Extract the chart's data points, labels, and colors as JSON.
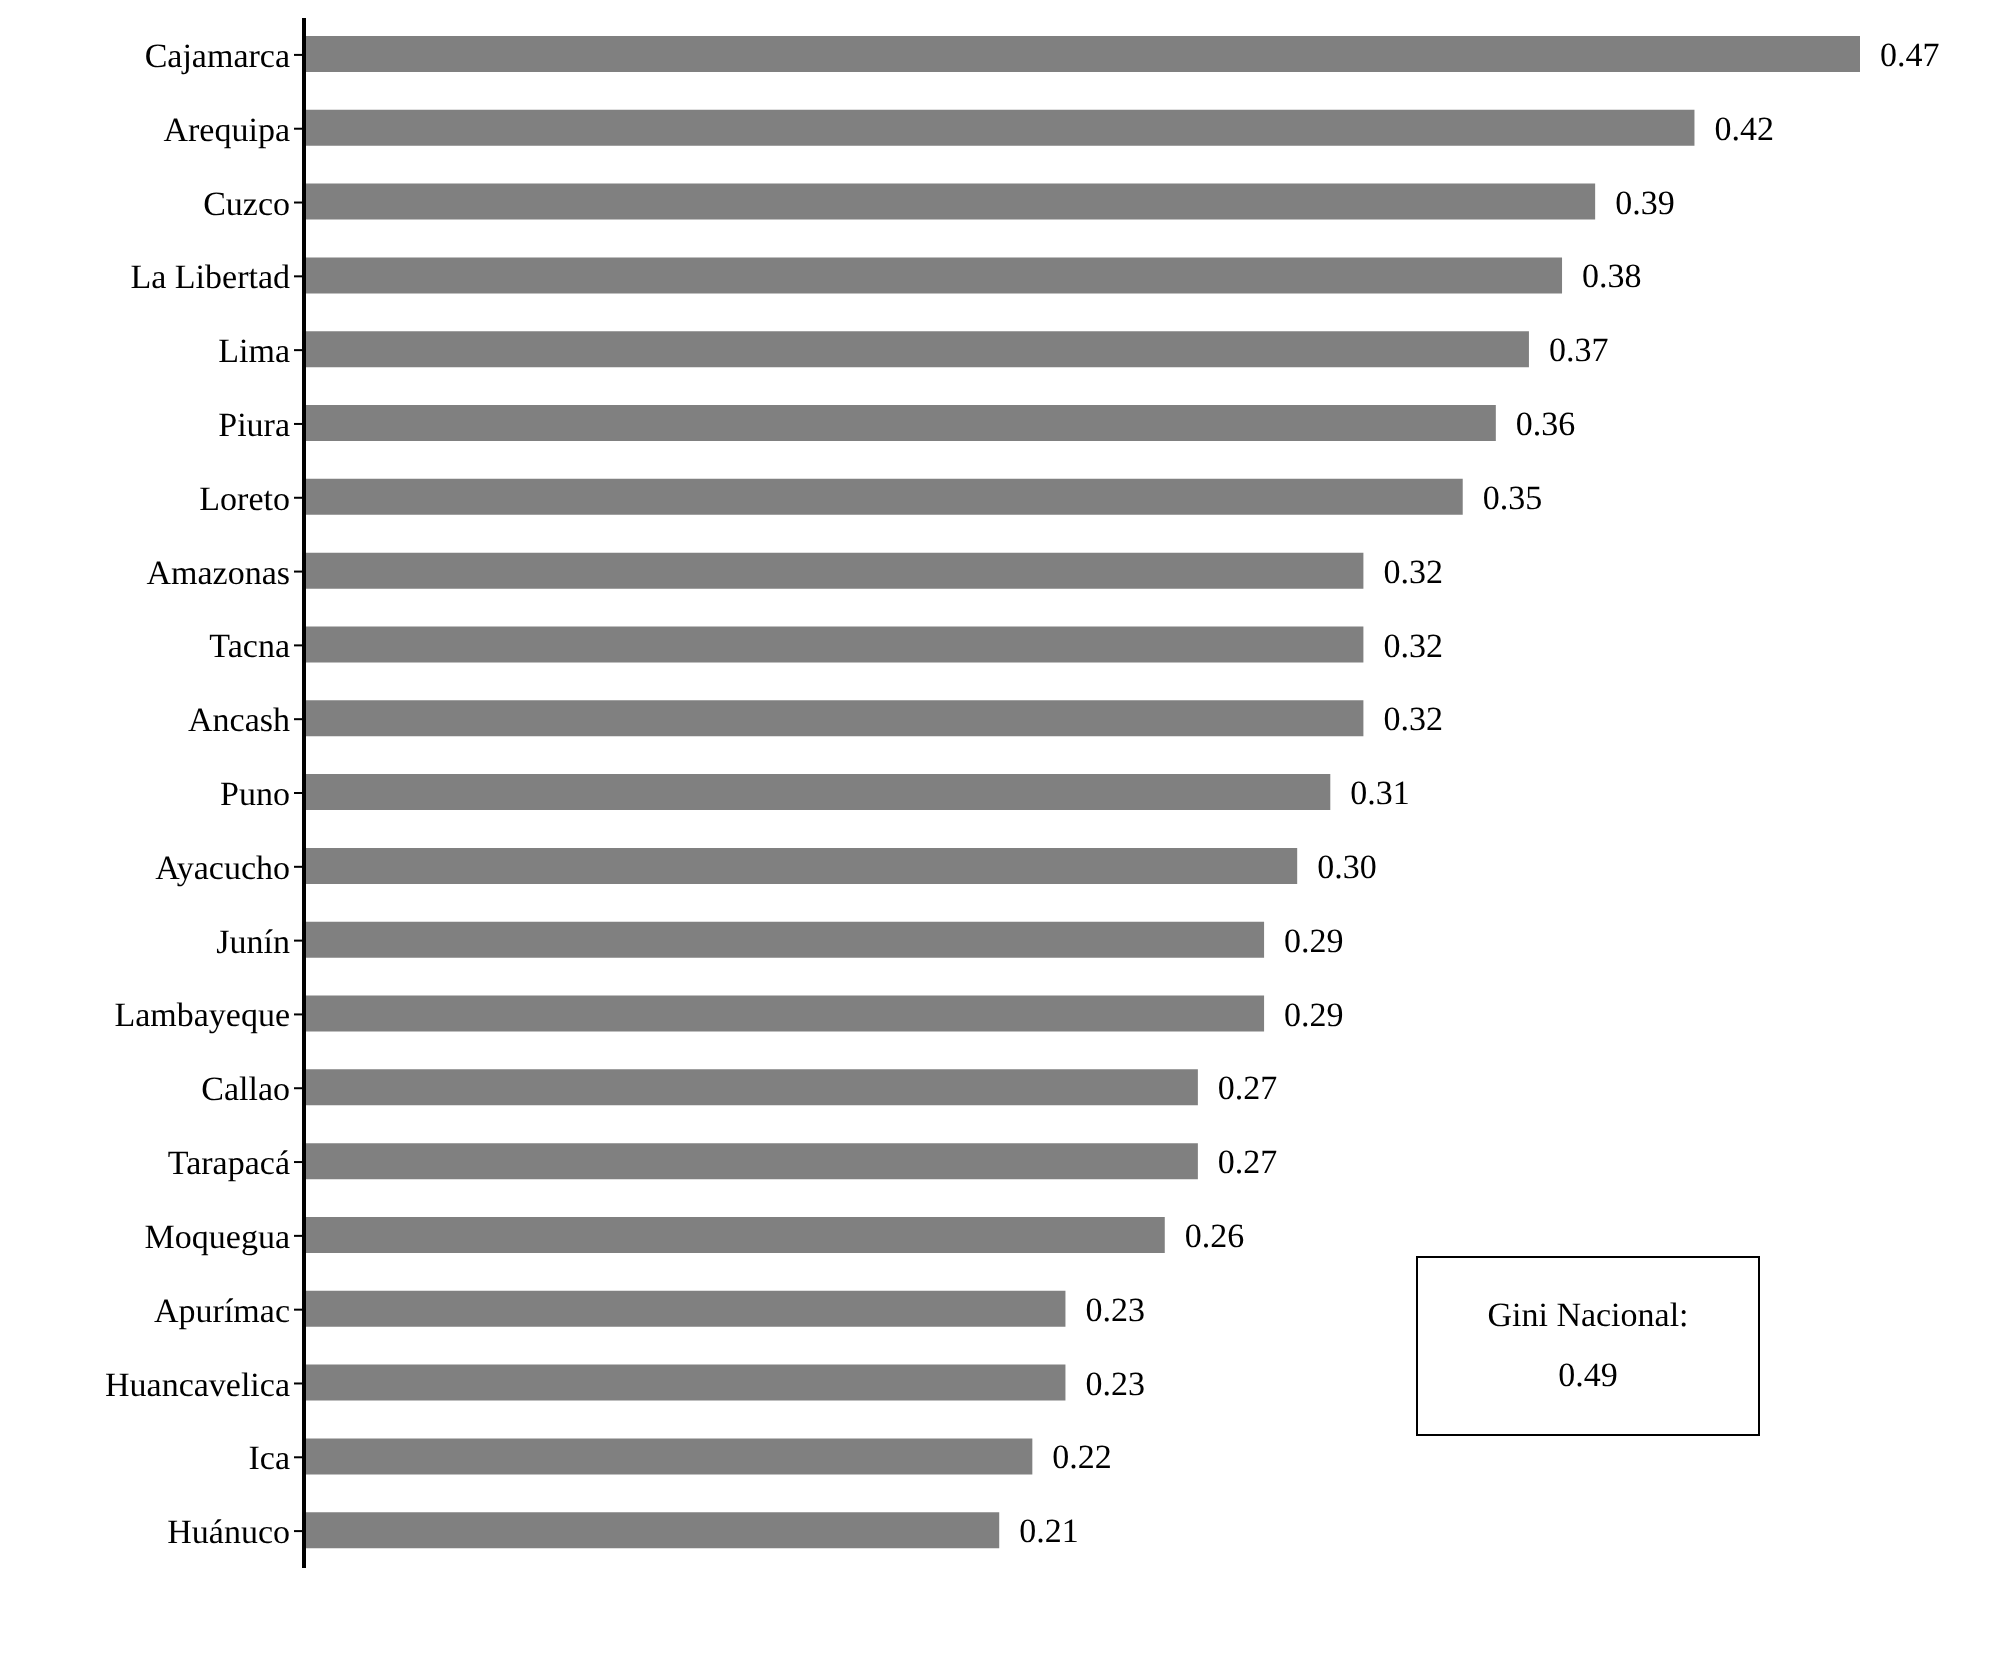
{
  "chart_data": {
    "type": "bar",
    "orientation": "horizontal",
    "categories": [
      "Cajamarca",
      "Arequipa",
      "Cuzco",
      "La Libertad",
      "Lima",
      "Piura",
      "Loreto",
      "Amazonas",
      "Tacna",
      "Ancash",
      "Puno",
      "Ayacucho",
      "Junín",
      "Lambayeque",
      "Callao",
      "Tarapacá",
      "Moquegua",
      "Apurímac",
      "Huancavelica",
      "Ica",
      "Huánuco"
    ],
    "values": [
      0.47,
      0.42,
      0.39,
      0.38,
      0.37,
      0.36,
      0.35,
      0.32,
      0.32,
      0.32,
      0.31,
      0.3,
      0.29,
      0.29,
      0.27,
      0.27,
      0.26,
      0.23,
      0.23,
      0.22,
      0.21
    ],
    "value_labels": [
      "0.47",
      "0.42",
      "0.39",
      "0.38",
      "0.37",
      "0.36",
      "0.35",
      "0.32",
      "0.32",
      "0.32",
      "0.31",
      "0.30",
      "0.29",
      "0.29",
      "0.27",
      "0.27",
      "0.26",
      "0.23",
      "0.23",
      "0.22",
      "0.21"
    ],
    "color": "#808080",
    "annotations": [
      "Gini Nacional: 0.49"
    ],
    "grid": false,
    "legend": false
  }
}
